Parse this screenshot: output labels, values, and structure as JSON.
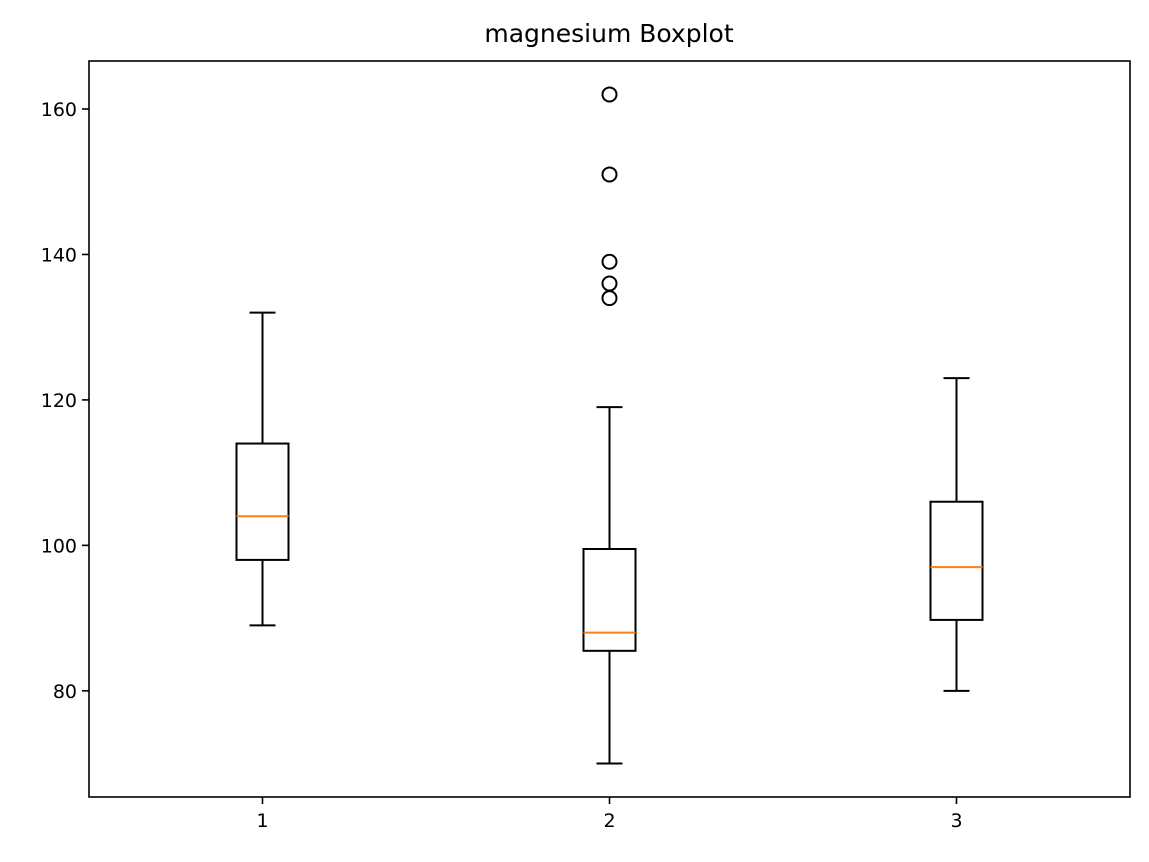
{
  "chart_data": {
    "type": "boxplot",
    "title": "magnesium Boxplot",
    "xlabel": "",
    "ylabel": "",
    "categories": [
      "1",
      "2",
      "3"
    ],
    "ylim": [
      65.4,
      166.6
    ],
    "yticks": [
      80,
      100,
      120,
      140,
      160
    ],
    "grid": false,
    "boxes": [
      {
        "label": "1",
        "whislo": 89,
        "q1": 98,
        "med": 104,
        "q3": 114,
        "whishi": 132,
        "fliers": []
      },
      {
        "label": "2",
        "whislo": 70,
        "q1": 85.5,
        "med": 88,
        "q3": 99.5,
        "whishi": 119,
        "fliers": [
          134,
          136,
          139,
          151,
          162
        ]
      },
      {
        "label": "3",
        "whislo": 80,
        "q1": 89.75,
        "med": 97,
        "q3": 106,
        "whishi": 123,
        "fliers": []
      }
    ],
    "colors": {
      "box": "#000000",
      "median": "#ff7f0e",
      "flier": "#000000"
    }
  }
}
